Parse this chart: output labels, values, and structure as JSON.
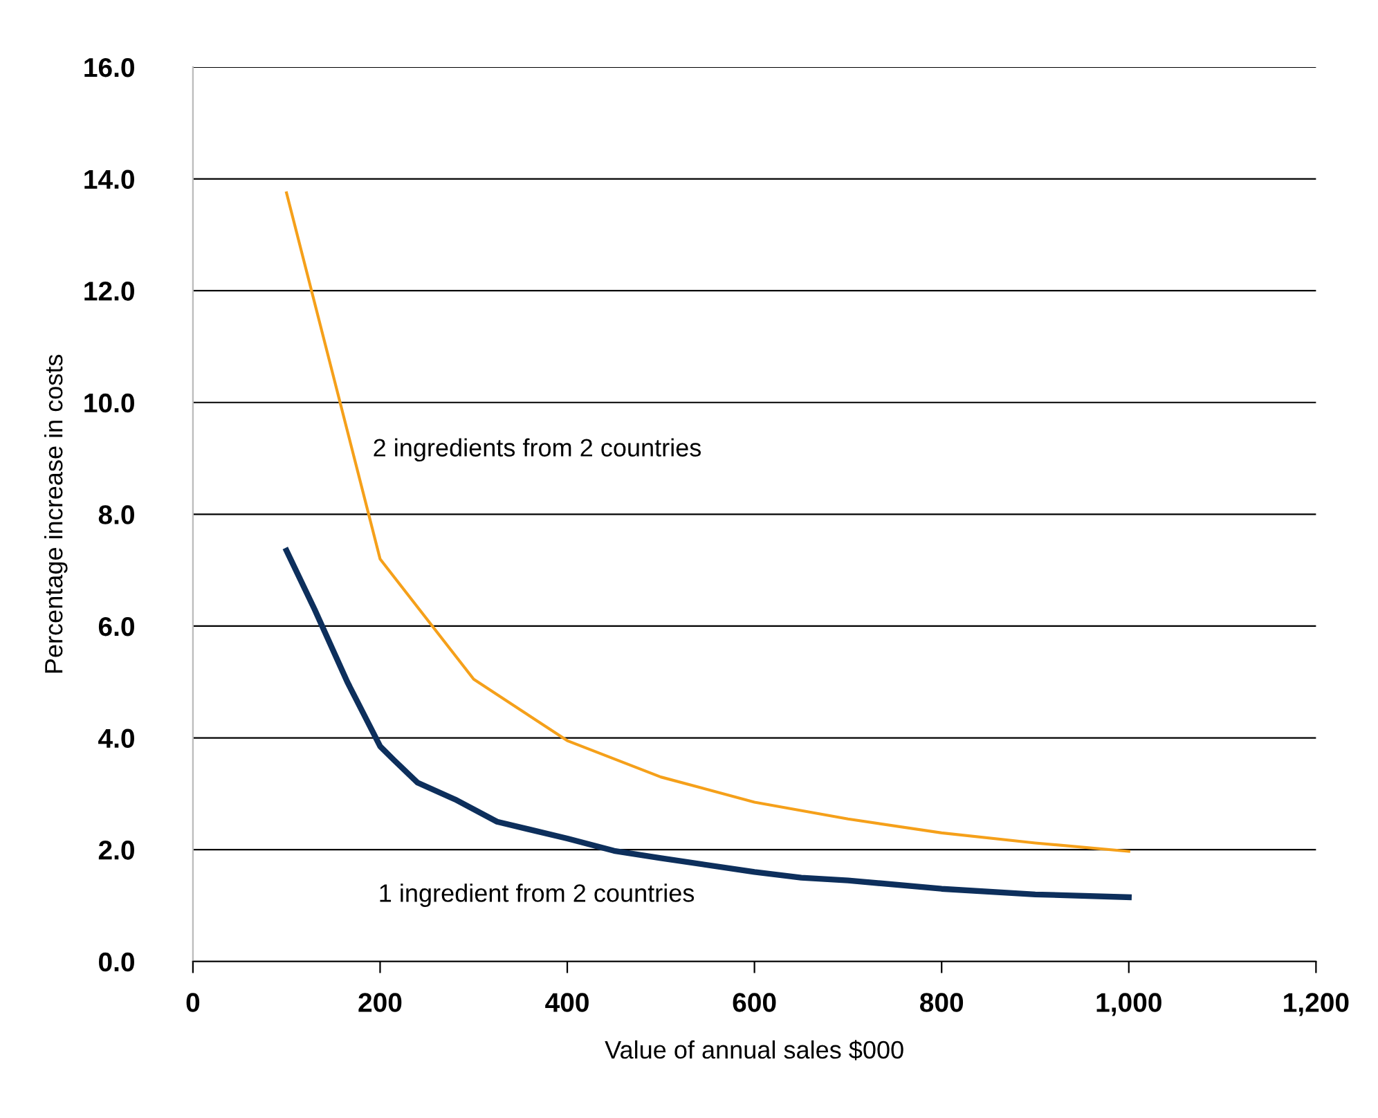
{
  "chart_data": {
    "type": "line",
    "xlabel": "Value of annual sales $000",
    "ylabel": "Percentage increase in costs",
    "xlim": [
      0,
      1200
    ],
    "xticks": [
      0,
      200,
      400,
      600,
      800,
      {
        "value": 1000,
        "label": "1,000"
      },
      {
        "value": 1200,
        "label": "1,200"
      }
    ],
    "ylim": [
      0,
      16
    ],
    "yticks": [
      {
        "value": 0,
        "label": "0.0"
      },
      {
        "value": 2,
        "label": "2.0"
      },
      {
        "value": 4,
        "label": "4.0"
      },
      {
        "value": 6,
        "label": "6.0"
      },
      {
        "value": 8,
        "label": "8.0"
      },
      {
        "value": 10,
        "label": "10.0"
      },
      {
        "value": 12,
        "label": "12.0"
      },
      {
        "value": 14,
        "label": "14.0"
      },
      {
        "value": 16,
        "label": "16.0"
      }
    ],
    "grid": "y",
    "legend": false,
    "series": [
      {
        "name": "2 ingredients from 2 countries",
        "color": "#f5a01a",
        "x": [
          100,
          200,
          300,
          400,
          500,
          600,
          700,
          800,
          900,
          1000
        ],
        "values": [
          13.75,
          7.2,
          5.05,
          3.95,
          3.3,
          2.85,
          2.55,
          2.3,
          2.12,
          1.97
        ]
      },
      {
        "name": "1 ingredient from 2 countries",
        "color": "#0d2f5c",
        "x": [
          100,
          130,
          165,
          200,
          215,
          240,
          280,
          325,
          400,
          450,
          500,
          600,
          650,
          700,
          800,
          900,
          1000
        ],
        "values": [
          7.35,
          6.3,
          5.0,
          3.85,
          3.6,
          3.2,
          2.9,
          2.5,
          2.2,
          1.98,
          1.85,
          1.6,
          1.5,
          1.45,
          1.3,
          1.2,
          1.15
        ]
      }
    ]
  }
}
